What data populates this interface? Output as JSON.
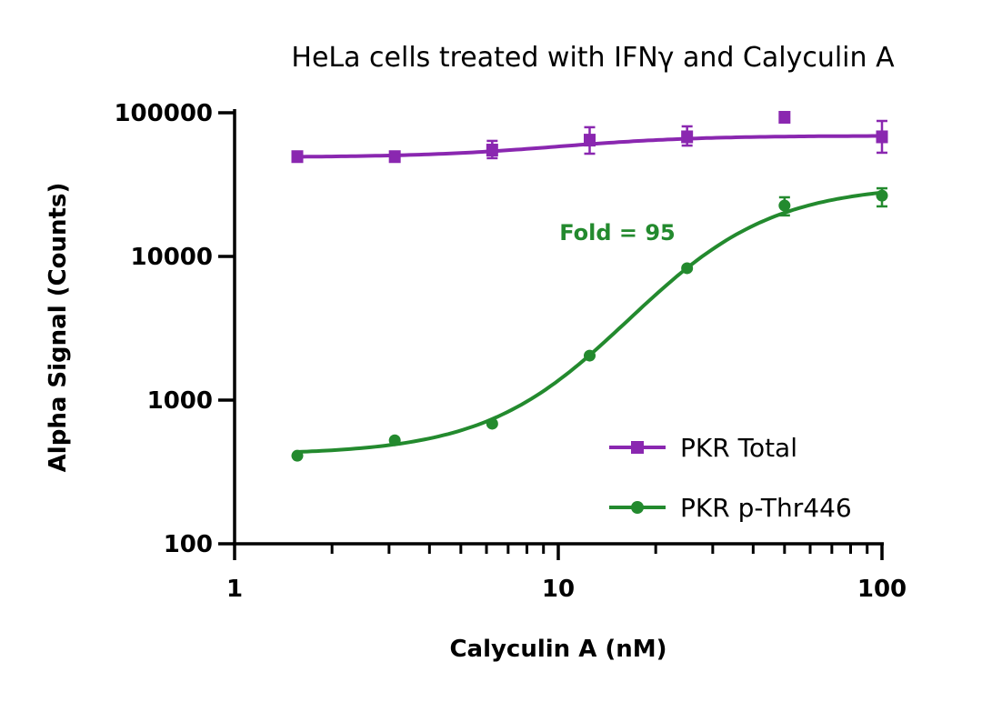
{
  "chart_data": {
    "type": "scatter",
    "title": "HeLa cells treated with IFNγ and Calyculin A",
    "xlabel": "Calyculin A (nM)",
    "ylabel": "Alpha Signal (Counts)",
    "xscale": "log",
    "yscale": "log",
    "xlim": [
      1,
      100
    ],
    "ylim": [
      100,
      100000
    ],
    "xticks": [
      "1",
      "10",
      "100"
    ],
    "yticks": [
      "100",
      "1000",
      "10000",
      "100000"
    ],
    "grid": false,
    "legend_position": "bottom-right",
    "annotation": {
      "text": "Fold = 95",
      "color": "#238a2e"
    },
    "series": [
      {
        "name": "PKR Total",
        "color": "#8a27b0",
        "marker": "square",
        "x": [
          1.5625,
          3.125,
          6.25,
          12.5,
          25,
          50,
          100
        ],
        "y": [
          49500,
          49500,
          55000,
          64500,
          68000,
          93000,
          68000
        ],
        "err_low": [
          null,
          null,
          48300,
          51900,
          59100,
          null,
          52700
        ],
        "err_high": [
          null,
          null,
          63700,
          79300,
          80400,
          null,
          87700
        ],
        "fit": {
          "bottom_log": 4.69,
          "top_log": 4.84,
          "ec50": 10,
          "hill": 2
        }
      },
      {
        "name": "PKR p-Thr446",
        "color": "#238a2e",
        "marker": "circle",
        "x": [
          1.5625,
          3.125,
          6.25,
          12.5,
          25,
          50,
          100
        ],
        "y": [
          410,
          525,
          685,
          2040,
          8280,
          22600,
          26500
        ],
        "err_low": [
          null,
          null,
          null,
          null,
          null,
          19300,
          22300
        ],
        "err_high": [
          null,
          null,
          null,
          null,
          null,
          25800,
          29800
        ],
        "fit": {
          "bottom_log": 2.62,
          "top_log": 4.5,
          "ec50": 16.5,
          "hill": 1.94
        }
      }
    ]
  }
}
